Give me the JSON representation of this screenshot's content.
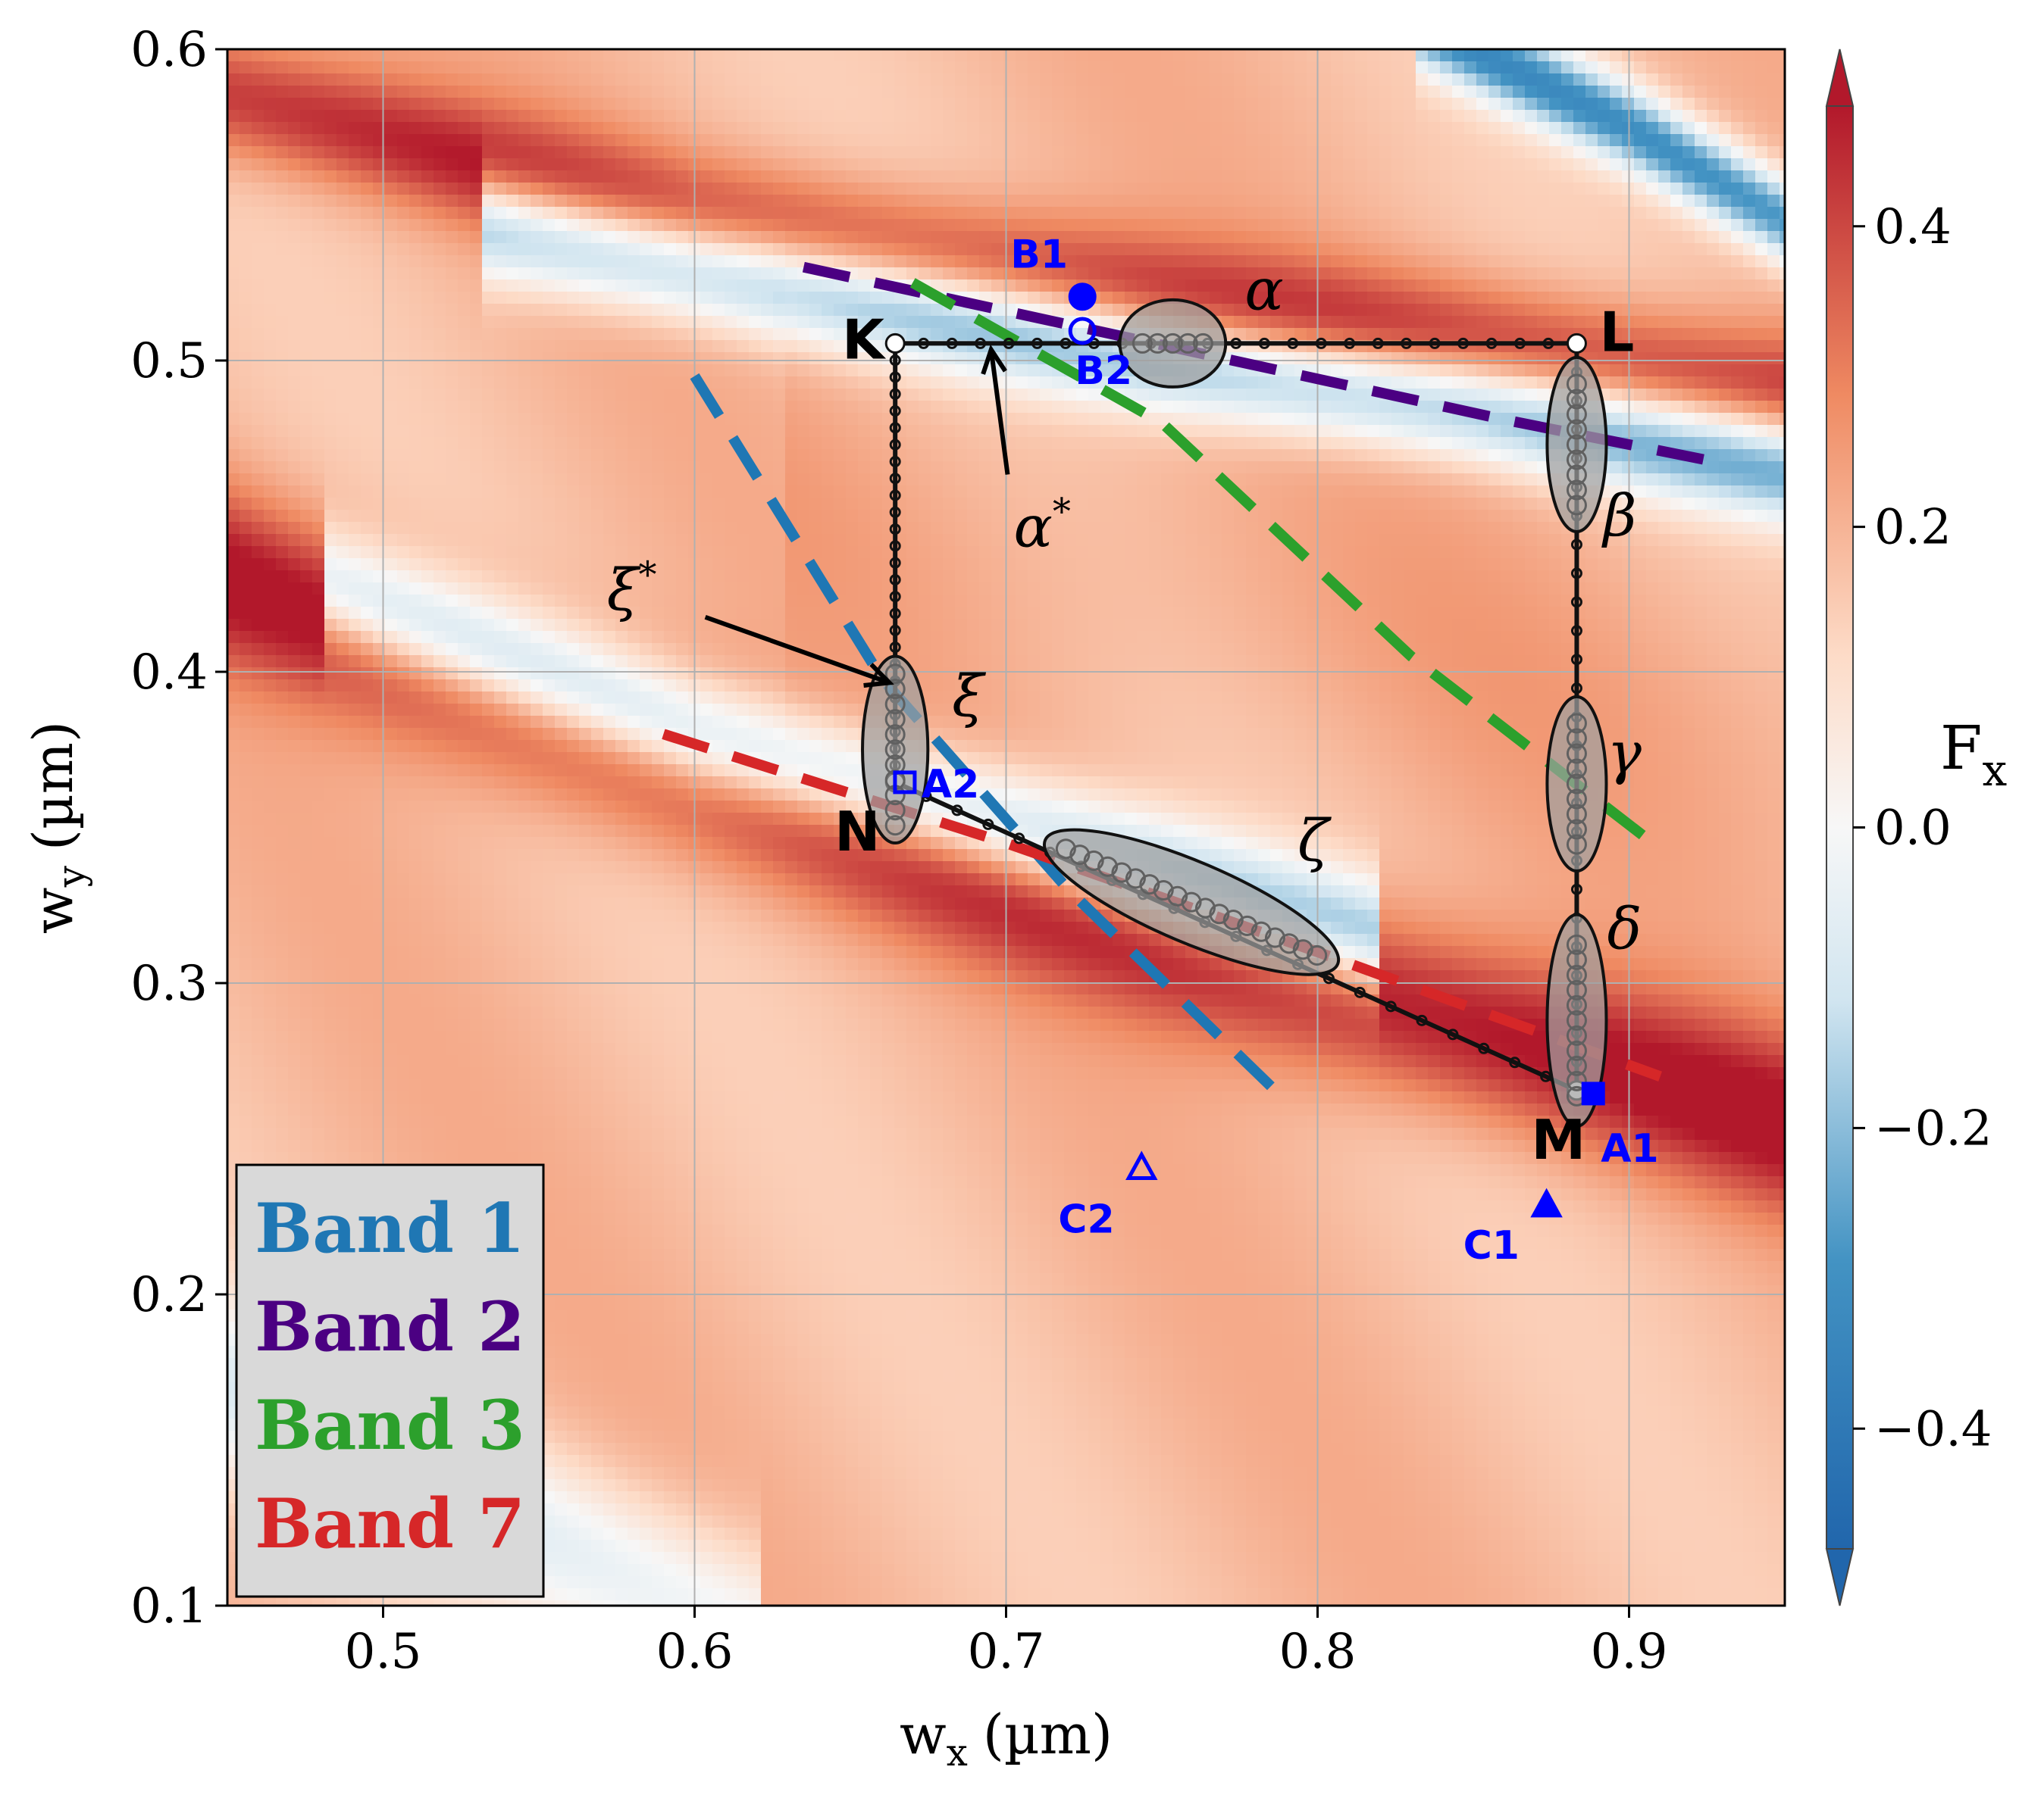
{
  "chart_data": {
    "type": "heatmap",
    "xlabel": "w",
    "xlabel_sub": "x",
    "xlabel_unit": "(µm)",
    "ylabel": "w",
    "ylabel_sub": "y",
    "ylabel_unit": "(µm)",
    "xlim": [
      0.45,
      0.95
    ],
    "ylim": [
      0.1,
      0.6
    ],
    "xticks": [
      0.5,
      0.6,
      0.7,
      0.8,
      0.9
    ],
    "xtick_labels": [
      "0.5",
      "0.6",
      "0.7",
      "0.8",
      "0.9"
    ],
    "yticks": [
      0.1,
      0.2,
      0.3,
      0.4,
      0.5,
      0.6
    ],
    "ytick_labels": [
      "0.1",
      "0.2",
      "0.3",
      "0.4",
      "0.5",
      "0.6"
    ],
    "grid": true,
    "colorbar": {
      "label": "F",
      "label_sub": "x",
      "range": [
        -0.48,
        0.48
      ],
      "ticks": [
        -0.4,
        -0.2,
        0.0,
        0.2,
        0.4
      ],
      "tick_labels": [
        "−0.4",
        "−0.2",
        "0.0",
        "0.2",
        "0.4"
      ],
      "colors": {
        "neg": "#2166ac",
        "mid": "#f7f7f7",
        "pos": "#b2182b"
      }
    },
    "heatmap_features": {
      "base_value": 0.18,
      "ridges": [
        {
          "points": [
            [
              0.45,
              0.585
            ],
            [
              0.6,
              0.545
            ],
            [
              0.75,
              0.52
            ],
            [
              0.95,
              0.49
            ]
          ],
          "value": 0.45,
          "width": 0.014
        },
        {
          "points": [
            [
              0.45,
              0.43
            ],
            [
              0.6,
              0.37
            ],
            [
              0.75,
              0.315
            ],
            [
              0.85,
              0.285
            ],
            [
              0.95,
              0.255
            ]
          ],
          "value": 0.5,
          "width": 0.02
        },
        {
          "points": [
            [
              0.65,
              0.45
            ],
            [
              0.75,
              0.43
            ],
            [
              0.85,
              0.4
            ],
            [
              0.95,
              0.38
            ]
          ],
          "value": 0.22,
          "width": 0.04
        }
      ],
      "valleys": [
        {
          "points": [
            [
              0.55,
              0.54
            ],
            [
              0.65,
              0.52
            ],
            [
              0.75,
              0.5
            ],
            [
              0.85,
              0.485
            ],
            [
              0.95,
              0.465
            ]
          ],
          "value": -0.25,
          "width": 0.012
        },
        {
          "points": [
            [
              0.5,
              0.42
            ],
            [
              0.6,
              0.38
            ],
            [
              0.7,
              0.35
            ],
            [
              0.8,
              0.32
            ]
          ],
          "value": -0.3,
          "width": 0.013
        },
        {
          "points": [
            [
              0.85,
              0.6
            ],
            [
              0.9,
              0.575
            ],
            [
              0.95,
              0.545
            ]
          ],
          "value": -0.3,
          "width": 0.01
        },
        {
          "points": [
            [
              0.45,
              0.17
            ],
            [
              0.6,
              0.1
            ]
          ],
          "value": -0.05,
          "width": 0.02
        }
      ]
    },
    "path": {
      "color": "#111111",
      "corner_labels": [
        {
          "name": "K",
          "x": 0.6644,
          "y": 0.5055
        },
        {
          "name": "L",
          "x": 0.8832,
          "y": 0.5055
        },
        {
          "name": "M",
          "x": 0.8832,
          "y": 0.2655
        },
        {
          "name": "N",
          "x": 0.6644,
          "y": 0.3645
        }
      ]
    },
    "bands": [
      {
        "name": "Band 1",
        "color": "#1f77b4",
        "x": [
          0.6,
          0.66,
          0.72,
          0.79
        ],
        "y": [
          0.495,
          0.398,
          0.33,
          0.262
        ]
      },
      {
        "name": "Band 2",
        "color": "#4b0082",
        "x": [
          0.635,
          0.75,
          0.86,
          0.93
        ],
        "y": [
          0.53,
          0.505,
          0.481,
          0.467
        ]
      },
      {
        "name": "Band 3",
        "color": "#2ca02c",
        "x": [
          0.67,
          0.75,
          0.83,
          0.905
        ],
        "y": [
          0.525,
          0.48,
          0.405,
          0.347
        ]
      },
      {
        "name": "Band 7",
        "color": "#d62728",
        "x": [
          0.59,
          0.7,
          0.8,
          0.91
        ],
        "y": [
          0.38,
          0.345,
          0.31,
          0.27
        ]
      }
    ],
    "regions": [
      {
        "name": "α",
        "label": "α",
        "cx": 0.7535,
        "cy": 0.5055,
        "angle_deg": 0,
        "rx_data": 0.017,
        "ry_data": 0.014
      },
      {
        "name": "β",
        "label": "β",
        "cx": 0.8832,
        "cy": 0.473,
        "angle_deg": 0,
        "rx_data": 0.0095,
        "ry_data": 0.028
      },
      {
        "name": "γ",
        "label": "γ",
        "cx": 0.8832,
        "cy": 0.364,
        "angle_deg": 0,
        "rx_data": 0.0095,
        "ry_data": 0.028
      },
      {
        "name": "δ",
        "label": "δ",
        "cx": 0.8832,
        "cy": 0.288,
        "angle_deg": 0,
        "rx_data": 0.0095,
        "ry_data": 0.034
      },
      {
        "name": "ξ",
        "label": "ξ",
        "cx": 0.6644,
        "cy": 0.375,
        "angle_deg": 0,
        "rx_data": 0.0105,
        "ry_data": 0.03
      },
      {
        "name": "ζ",
        "label": "ζ",
        "cx": 0.7595,
        "cy": 0.326,
        "angle_deg": 23,
        "rx_data": 0.051,
        "ry_data": 0.013
      }
    ],
    "annotations": [
      {
        "text": "α",
        "sup": "*",
        "x": 0.7,
        "y": 0.45
      },
      {
        "text": "ξ",
        "sup": "*",
        "x": 0.601,
        "y": 0.42
      }
    ],
    "markers": [
      {
        "label": "A1",
        "shape": "square",
        "filled": true,
        "x": 0.8885,
        "y": 0.2645,
        "color": "#0000ff"
      },
      {
        "label": "A2",
        "shape": "square",
        "filled": false,
        "x": 0.6675,
        "y": 0.3645,
        "color": "#0000ff"
      },
      {
        "label": "B1",
        "shape": "circle",
        "filled": true,
        "x": 0.7245,
        "y": 0.5205,
        "color": "#0000ff"
      },
      {
        "label": "B2",
        "shape": "circle",
        "filled": false,
        "x": 0.7245,
        "y": 0.5095,
        "color": "#0000ff"
      },
      {
        "label": "C1",
        "shape": "triangle",
        "filled": true,
        "x": 0.8735,
        "y": 0.2285,
        "color": "#0000ff"
      },
      {
        "label": "C2",
        "shape": "triangle",
        "filled": false,
        "x": 0.7435,
        "y": 0.2405,
        "color": "#0000ff"
      }
    ]
  }
}
